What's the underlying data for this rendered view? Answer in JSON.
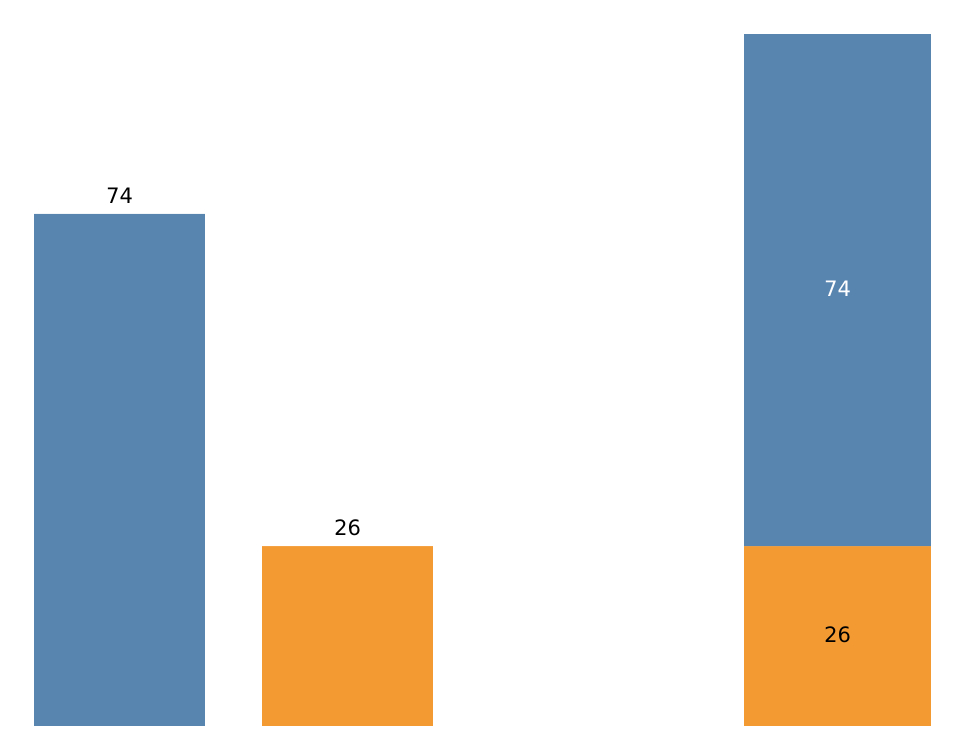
{
  "chart_data": [
    {
      "type": "bar",
      "categories": [
        null,
        null
      ],
      "values": [
        74,
        26
      ],
      "colors": [
        "#5884b0",
        "#f39a33"
      ]
    },
    {
      "type": "stacked_bar",
      "categories": [
        null
      ],
      "series": [
        {
          "color": "#f39a33",
          "values": [
            26
          ]
        },
        {
          "color": "#5884b0",
          "values": [
            74
          ]
        }
      ]
    }
  ]
}
